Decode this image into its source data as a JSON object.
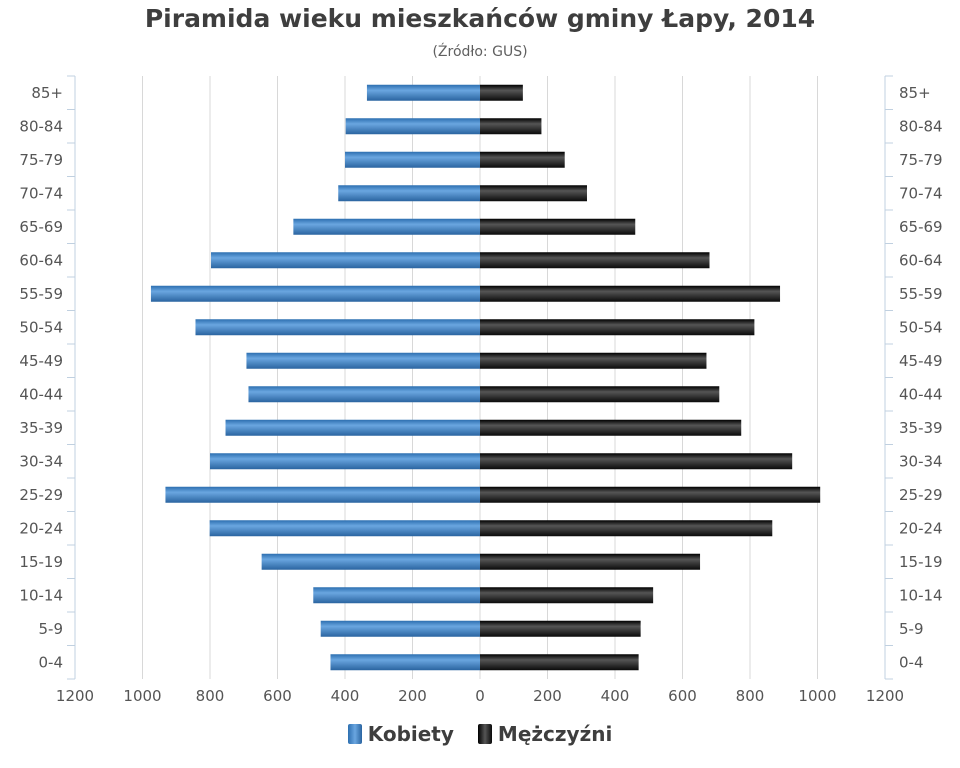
{
  "chart_data": {
    "type": "bar",
    "orientation": "horizontal-pyramid",
    "title": "Piramida wieku mieszkańców gminy Łapy, 2014",
    "subtitle": "(Źródło: GUS)",
    "categories": [
      "85+",
      "80-84",
      "75-79",
      "70-74",
      "65-69",
      "60-64",
      "55-59",
      "50-54",
      "45-49",
      "40-44",
      "35-39",
      "30-34",
      "25-29",
      "20-24",
      "15-19",
      "10-14",
      "5-9",
      "0-4"
    ],
    "series": [
      {
        "name": "Kobiety",
        "color": "#3f7fc2",
        "values": [
          335,
          398,
          400,
          420,
          553,
          797,
          975,
          843,
          692,
          686,
          754,
          800,
          932,
          801,
          647,
          494,
          472,
          443
        ]
      },
      {
        "name": "Mężczyźni",
        "color": "#1a1a1a",
        "values": [
          127,
          182,
          251,
          317,
          460,
          680,
          889,
          813,
          671,
          709,
          774,
          925,
          1008,
          866,
          652,
          513,
          476,
          470
        ]
      }
    ],
    "xlim": [
      -1200,
      1200
    ],
    "x_ticks": [
      "1200",
      "1000",
      "800",
      "600",
      "400",
      "200",
      "0",
      "200",
      "400",
      "600",
      "800",
      "1000",
      "1200"
    ],
    "grid": true,
    "legend": "bottom-center"
  }
}
